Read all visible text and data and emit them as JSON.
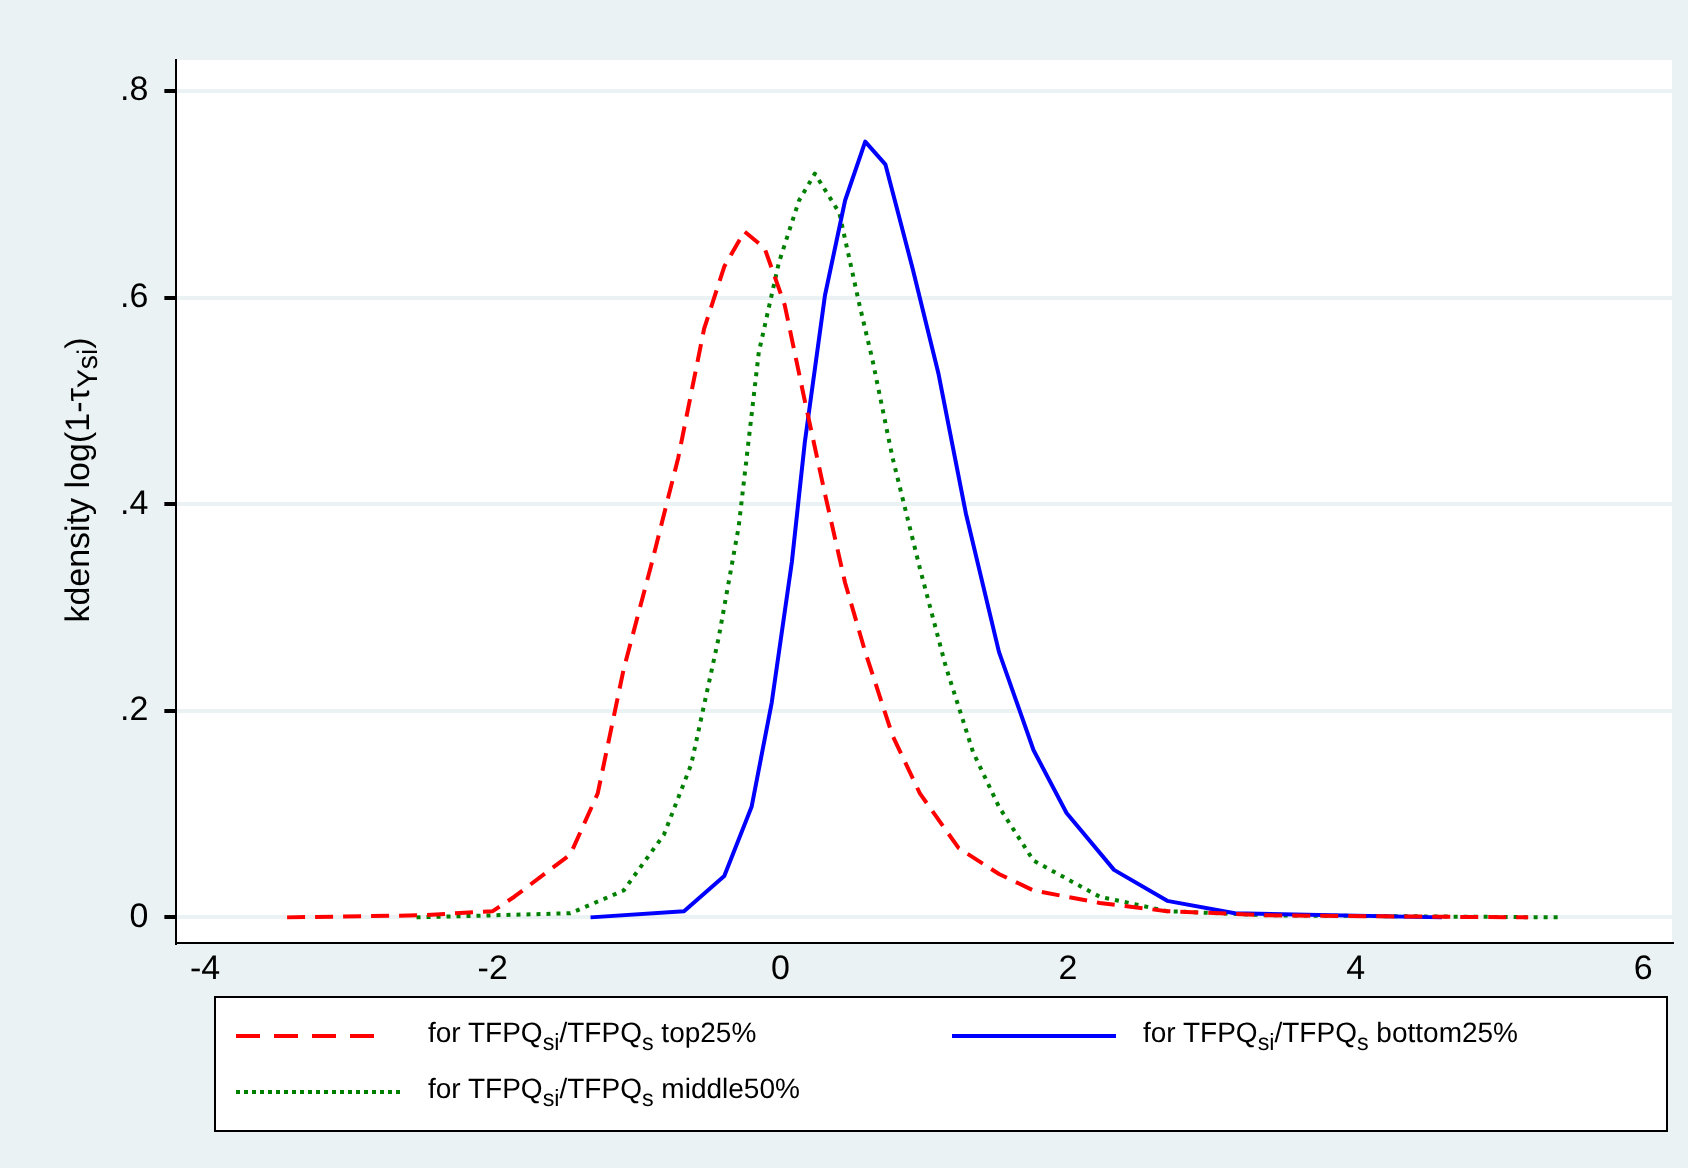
{
  "chart_data": {
    "type": "line",
    "ylabel": "kdensity log(1-τ$_{Ysi}$)",
    "xlim": [
      -4.2,
      6.2
    ],
    "ylim": [
      -0.025,
      0.83
    ],
    "xticks": [
      -4,
      -2,
      0,
      2,
      4,
      6
    ],
    "yticks": [
      {
        "value": 0,
        "label": "0"
      },
      {
        "value": 0.2,
        "label": ".2"
      },
      {
        "value": 0.4,
        "label": ".4"
      },
      {
        "value": 0.6,
        "label": ".6"
      },
      {
        "value": 0.8,
        "label": ".8"
      }
    ],
    "grid": "y",
    "legend": "bottom",
    "marker": "none",
    "series": [
      {
        "name": "for TFPQ$_{si}$/TFPQ$_{s}$ top25%",
        "color": "#ff0000",
        "line_style": "dashed",
        "x": [
          -3.43,
          -2.5,
          -2.0,
          -1.85,
          -1.46,
          -1.27,
          -1.09,
          -0.9,
          -0.71,
          -0.53,
          -0.39,
          -0.25,
          -0.11,
          0.03,
          0.17,
          0.31,
          0.45,
          0.59,
          0.78,
          0.97,
          1.24,
          1.52,
          1.76,
          2.22,
          2.69,
          3.39,
          4.2,
          5.2
        ],
        "values": [
          0,
          0.002,
          0.006,
          0.02,
          0.061,
          0.12,
          0.24,
          0.34,
          0.445,
          0.57,
          0.63,
          0.664,
          0.648,
          0.593,
          0.5,
          0.41,
          0.324,
          0.257,
          0.176,
          0.12,
          0.067,
          0.042,
          0.026,
          0.014,
          0.006,
          0.002,
          0.001,
          0
        ]
      },
      {
        "name": "for TFPQ$_{si}$/TFPQ$_{s}$  bottom25%",
        "color": "#0000ff",
        "line_style": "solid",
        "x": [
          -1.32,
          -0.67,
          -0.39,
          -0.2,
          -0.06,
          0.08,
          0.17,
          0.31,
          0.45,
          0.59,
          0.73,
          0.92,
          1.1,
          1.29,
          1.52,
          1.76,
          1.99,
          2.32,
          2.69,
          3.16,
          4.6
        ],
        "values": [
          0,
          0.006,
          0.04,
          0.107,
          0.208,
          0.344,
          0.46,
          0.602,
          0.694,
          0.751,
          0.729,
          0.628,
          0.526,
          0.391,
          0.257,
          0.162,
          0.101,
          0.046,
          0.016,
          0.004,
          0
        ]
      },
      {
        "name": "for TFPQ$_{si}$/TFPQ$_{s}$  middle50%",
        "color": "#008000",
        "line_style": "dotted",
        "x": [
          -2.53,
          -1.46,
          -1.09,
          -0.81,
          -0.62,
          -0.43,
          -0.29,
          -0.15,
          -0.01,
          0.13,
          0.24,
          0.41,
          0.55,
          0.64,
          0.78,
          0.97,
          1.15,
          1.34,
          1.52,
          1.76,
          2.22,
          2.69,
          3.4,
          4.4,
          5.41
        ],
        "values": [
          0,
          0.004,
          0.026,
          0.08,
          0.148,
          0.27,
          0.378,
          0.547,
          0.634,
          0.694,
          0.72,
          0.682,
          0.593,
          0.54,
          0.445,
          0.338,
          0.243,
          0.16,
          0.107,
          0.055,
          0.02,
          0.006,
          0.002,
          0.001,
          0
        ]
      }
    ]
  }
}
